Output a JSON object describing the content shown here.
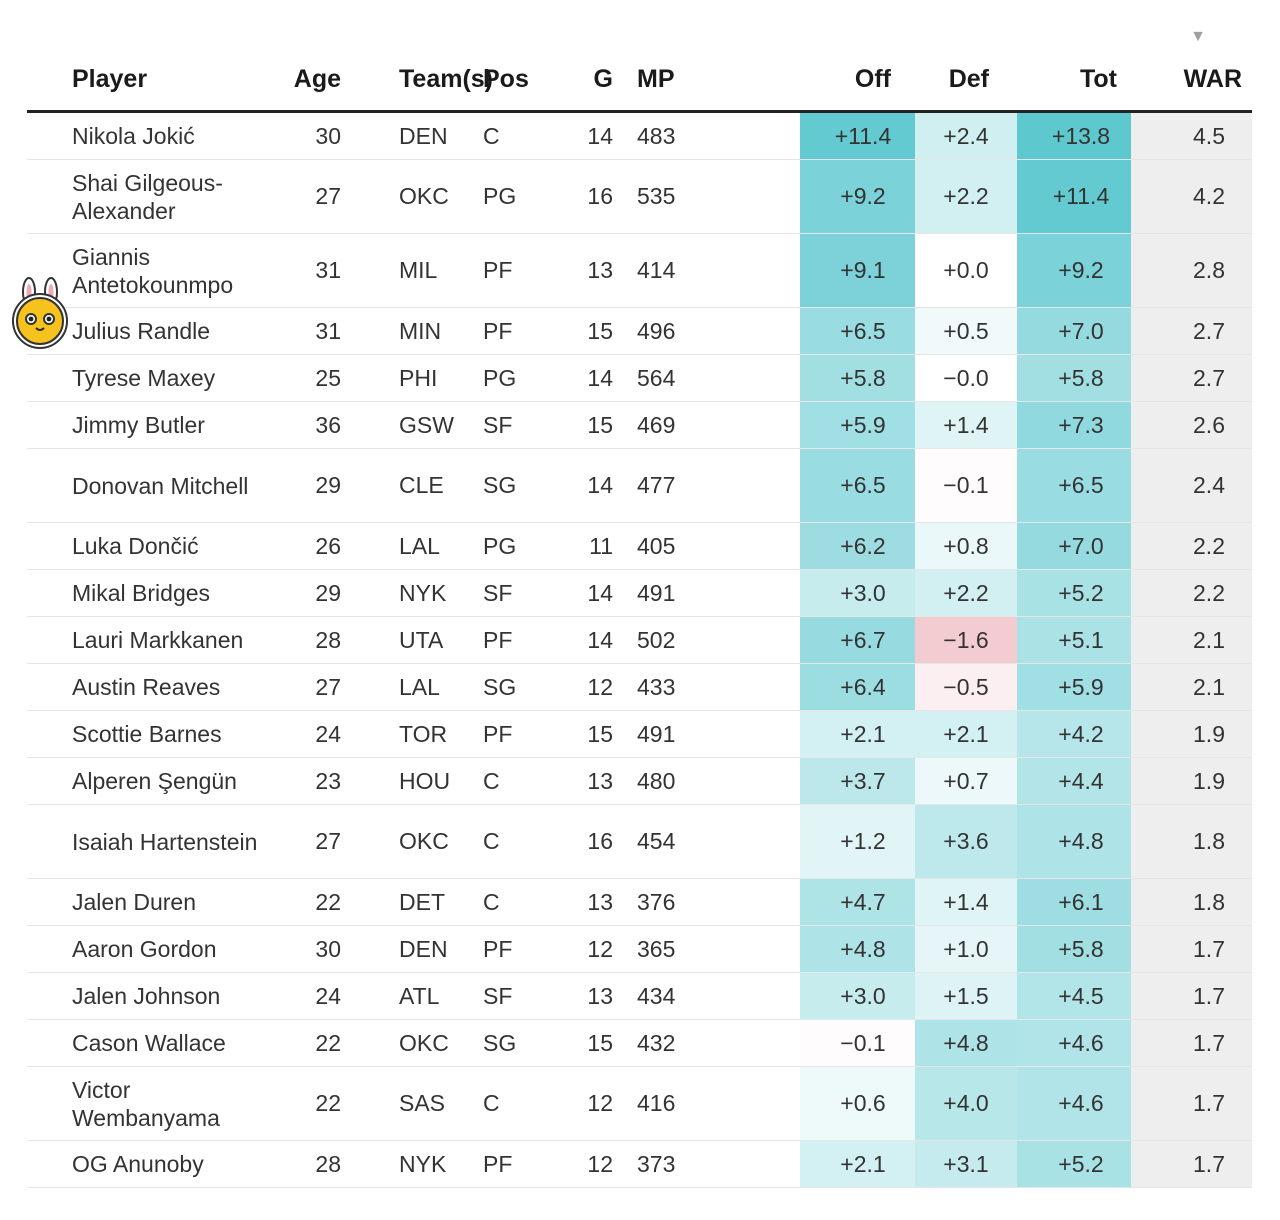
{
  "headers": {
    "player": "Player",
    "age": "Age",
    "team": "Team(s)",
    "pos": "Pos",
    "g": "G",
    "mp": "MP",
    "off": "Off",
    "def": "Def",
    "tot": "Tot",
    "war": "WAR",
    "sort_indicator": "▼"
  },
  "rows": [
    {
      "player": "Nikola Jokić",
      "age": "30",
      "team": "DEN",
      "pos": "C",
      "g": "14",
      "mp": "483",
      "off": "+11.4",
      "def": "+2.4",
      "tot": "+13.8",
      "war": "4.5"
    },
    {
      "player": "Shai Gilgeous-Alexander",
      "age": "27",
      "team": "OKC",
      "pos": "PG",
      "g": "16",
      "mp": "535",
      "off": "+9.2",
      "def": "+2.2",
      "tot": "+11.4",
      "war": "4.2"
    },
    {
      "player": "Giannis Antetokounmpo",
      "age": "31",
      "team": "MIL",
      "pos": "PF",
      "g": "13",
      "mp": "414",
      "off": "+9.1",
      "def": "+0.0",
      "tot": "+9.2",
      "war": "2.8"
    },
    {
      "player": "Julius Randle",
      "age": "31",
      "team": "MIN",
      "pos": "PF",
      "g": "15",
      "mp": "496",
      "off": "+6.5",
      "def": "+0.5",
      "tot": "+7.0",
      "war": "2.7"
    },
    {
      "player": "Tyrese Maxey",
      "age": "25",
      "team": "PHI",
      "pos": "PG",
      "g": "14",
      "mp": "564",
      "off": "+5.8",
      "def": "−0.0",
      "tot": "+5.8",
      "war": "2.7"
    },
    {
      "player": "Jimmy Butler",
      "age": "36",
      "team": "GSW",
      "pos": "SF",
      "g": "15",
      "mp": "469",
      "off": "+5.9",
      "def": "+1.4",
      "tot": "+7.3",
      "war": "2.6"
    },
    {
      "player": "Donovan Mitchell",
      "age": "29",
      "team": "CLE",
      "pos": "SG",
      "g": "14",
      "mp": "477",
      "off": "+6.5",
      "def": "−0.1",
      "tot": "+6.5",
      "war": "2.4"
    },
    {
      "player": "Luka Dončić",
      "age": "26",
      "team": "LAL",
      "pos": "PG",
      "g": "11",
      "mp": "405",
      "off": "+6.2",
      "def": "+0.8",
      "tot": "+7.0",
      "war": "2.2"
    },
    {
      "player": "Mikal Bridges",
      "age": "29",
      "team": "NYK",
      "pos": "SF",
      "g": "14",
      "mp": "491",
      "off": "+3.0",
      "def": "+2.2",
      "tot": "+5.2",
      "war": "2.2"
    },
    {
      "player": "Lauri Markkanen",
      "age": "28",
      "team": "UTA",
      "pos": "PF",
      "g": "14",
      "mp": "502",
      "off": "+6.7",
      "def": "−1.6",
      "tot": "+5.1",
      "war": "2.1"
    },
    {
      "player": "Austin Reaves",
      "age": "27",
      "team": "LAL",
      "pos": "SG",
      "g": "12",
      "mp": "433",
      "off": "+6.4",
      "def": "−0.5",
      "tot": "+5.9",
      "war": "2.1"
    },
    {
      "player": "Scottie Barnes",
      "age": "24",
      "team": "TOR",
      "pos": "PF",
      "g": "15",
      "mp": "491",
      "off": "+2.1",
      "def": "+2.1",
      "tot": "+4.2",
      "war": "1.9"
    },
    {
      "player": "Alperen Şengün",
      "age": "23",
      "team": "HOU",
      "pos": "C",
      "g": "13",
      "mp": "480",
      "off": "+3.7",
      "def": "+0.7",
      "tot": "+4.4",
      "war": "1.9"
    },
    {
      "player": "Isaiah Hartenstein",
      "age": "27",
      "team": "OKC",
      "pos": "C",
      "g": "16",
      "mp": "454",
      "off": "+1.2",
      "def": "+3.6",
      "tot": "+4.8",
      "war": "1.8"
    },
    {
      "player": "Jalen Duren",
      "age": "22",
      "team": "DET",
      "pos": "C",
      "g": "13",
      "mp": "376",
      "off": "+4.7",
      "def": "+1.4",
      "tot": "+6.1",
      "war": "1.8"
    },
    {
      "player": "Aaron Gordon",
      "age": "30",
      "team": "DEN",
      "pos": "PF",
      "g": "12",
      "mp": "365",
      "off": "+4.8",
      "def": "+1.0",
      "tot": "+5.8",
      "war": "1.7"
    },
    {
      "player": "Jalen Johnson",
      "age": "24",
      "team": "ATL",
      "pos": "SF",
      "g": "13",
      "mp": "434",
      "off": "+3.0",
      "def": "+1.5",
      "tot": "+4.5",
      "war": "1.7"
    },
    {
      "player": "Cason Wallace",
      "age": "22",
      "team": "OKC",
      "pos": "SG",
      "g": "15",
      "mp": "432",
      "off": "−0.1",
      "def": "+4.8",
      "tot": "+4.6",
      "war": "1.7"
    },
    {
      "player": "Victor Wembanyama",
      "age": "22",
      "team": "SAS",
      "pos": "C",
      "g": "12",
      "mp": "416",
      "off": "+0.6",
      "def": "+4.0",
      "tot": "+4.6",
      "war": "1.7"
    },
    {
      "player": "OG Anunoby",
      "age": "28",
      "team": "NYK",
      "pos": "PF",
      "g": "12",
      "mp": "373",
      "off": "+2.1",
      "def": "+3.1",
      "tot": "+5.2",
      "war": "1.7"
    }
  ],
  "colors": {
    "positive_max": "#5ec8cf",
    "negative_max": "#f2c9cf",
    "neutral": "#ffffff",
    "war_column": "#eeeeee",
    "header_rule": "#222222",
    "row_rule": "#e6e6e6"
  },
  "overlay": {
    "icon": "bunny-sticker-icon"
  }
}
